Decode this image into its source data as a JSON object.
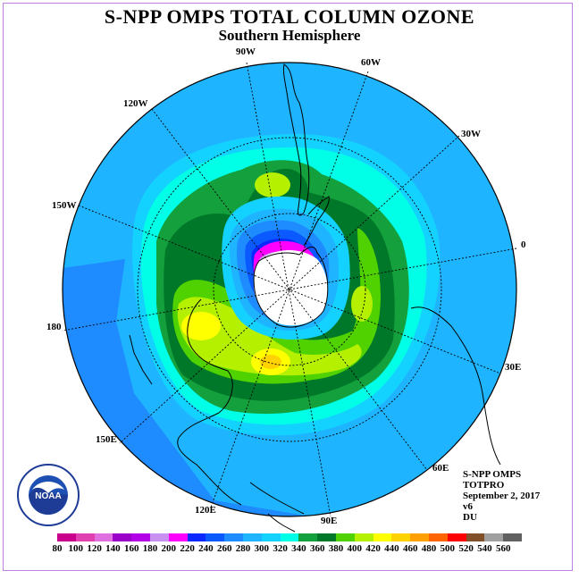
{
  "title": "S-NPP OMPS TOTAL COLUMN OZONE",
  "subtitle": "Southern Hemisphere",
  "longitudes": [
    "90W",
    "60W",
    "120W",
    "30W",
    "150W",
    "0",
    "180",
    "30E",
    "150E",
    "60E",
    "120E",
    "90E"
  ],
  "info": {
    "line1": "S-NPP OMPS",
    "line2": "TOTPRO",
    "line3": "September 2, 2017",
    "line4": "v6",
    "line5": "DU"
  },
  "logo": {
    "text": "NOAA",
    "ring_text": "NATIONAL OCEANIC AND ATMOSPHERIC ADMINISTRATION U.S. DEPARTMENT OF COMMERCE"
  },
  "colorbar": {
    "labels": [
      "80",
      "100",
      "120",
      "140",
      "160",
      "180",
      "200",
      "220",
      "240",
      "260",
      "280",
      "300",
      "320",
      "340",
      "360",
      "380",
      "400",
      "420",
      "440",
      "460",
      "480",
      "500",
      "520",
      "540",
      "560"
    ],
    "colors": [
      "#c8008c",
      "#e040b0",
      "#e070e0",
      "#9a00c8",
      "#b400e6",
      "#c890f0",
      "#ff00ff",
      "#0a28ff",
      "#0a5aff",
      "#1e8cff",
      "#1eb4ff",
      "#14d2ff",
      "#00ffe6",
      "#14a03c",
      "#00782a",
      "#50d200",
      "#b4f000",
      "#ffff00",
      "#ffd200",
      "#ffa000",
      "#ff6400",
      "#ff0000",
      "#825028",
      "#a0a0a0",
      "#606060"
    ]
  },
  "palette": {
    "ocean": "#1e8cff",
    "level_280": "#1eb4ff",
    "level_300": "#14d2ff",
    "level_320": "#00ffe6",
    "level_340": "#14a03c",
    "level_360": "#00782a",
    "level_380": "#50d200",
    "level_400": "#b4f000",
    "level_420": "#ffff00",
    "level_440": "#ffd200",
    "level_240": "#0a5aff",
    "level_220": "#0a28ff",
    "level_200": "#ff00ff",
    "level_180": "#c890f0",
    "no_data": "#ffffff"
  }
}
